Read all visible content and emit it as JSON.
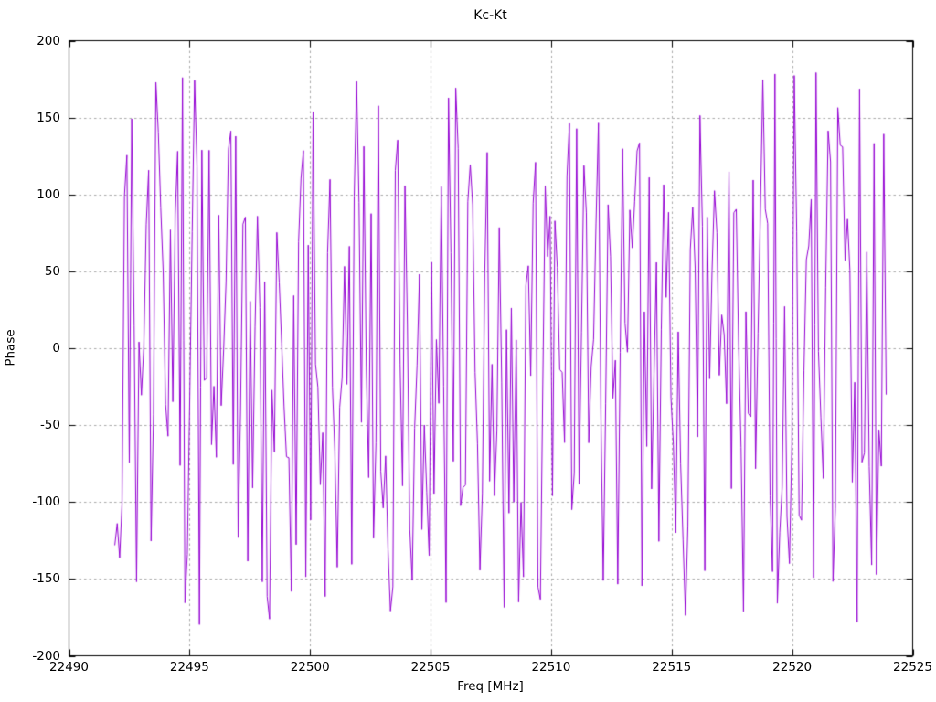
{
  "figure": {
    "background": "#ffffff"
  },
  "chart_data": {
    "type": "line",
    "title": "Kc-Kt",
    "xlabel": "Freq [MHz]",
    "ylabel": "Phase",
    "xlim": [
      22490,
      22525
    ],
    "ylim": [
      -200,
      200
    ],
    "x_ticks": [
      22490,
      22495,
      22500,
      22505,
      22510,
      22515,
      22520,
      22525
    ],
    "y_ticks": [
      -200,
      -150,
      -100,
      -50,
      0,
      50,
      100,
      150,
      200
    ],
    "grid": true,
    "grid_style": "dashed",
    "legend_position": "none",
    "series": [
      {
        "name": "Kc-Kt",
        "style": "lines",
        "color": "#9400d3",
        "x_start": 22491.9,
        "x_end": 22523.9,
        "n_points": 320,
        "y_wrap_min": -180,
        "y_wrap_max": 180,
        "synthesis": {
          "model": "wrapped-random-walk-phase",
          "seed": 7,
          "small_step_prob": 0.18,
          "small_step_deg": 50,
          "large_step_deg": 330
        }
      }
    ]
  },
  "colors": {
    "line": "#9400d3",
    "grid": "#a9a9a9",
    "axis": "#000000",
    "text": "#000000",
    "background": "#ffffff"
  }
}
